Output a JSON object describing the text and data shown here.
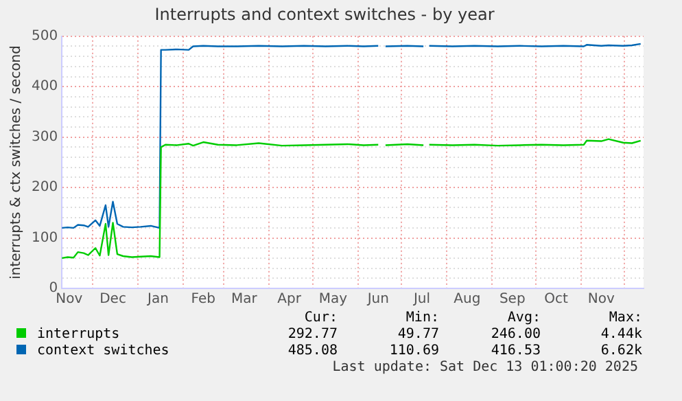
{
  "chart_data": {
    "type": "line",
    "title": "Interrupts and context switches - by year",
    "ylabel": "interrupts & ctx switches / second",
    "x": [
      "2024-11-10",
      "2024-11-14",
      "2024-11-18",
      "2024-11-21",
      "2024-11-25",
      "2024-11-28",
      "2024-12-03",
      "2024-12-06",
      "2024-12-10",
      "2024-12-12",
      "2024-12-15",
      "2024-12-18",
      "2024-12-22",
      "2024-12-28",
      "2025-01-03",
      "2025-01-10",
      "2025-01-16",
      "2025-01-17",
      "2025-01-20",
      "2025-01-28",
      "2025-02-05",
      "2025-02-08",
      "2025-02-15",
      "2025-02-25",
      "2025-03-10",
      "2025-03-25",
      "2025-04-10",
      "2025-04-25",
      "2025-05-10",
      "2025-05-25",
      "2025-06-05",
      "2025-06-15",
      "2025-06-18",
      "2025-06-20",
      "2025-07-05",
      "2025-07-16",
      "2025-07-18",
      "2025-07-20",
      "2025-08-05",
      "2025-08-20",
      "2025-09-05",
      "2025-09-20",
      "2025-10-05",
      "2025-10-20",
      "2025-11-03",
      "2025-11-05",
      "2025-11-15",
      "2025-11-20",
      "2025-11-30",
      "2025-12-06",
      "2025-12-12"
    ],
    "series": [
      {
        "name": "interrupts",
        "color": "#00cc00",
        "values": [
          60,
          62,
          61,
          72,
          70,
          66,
          80,
          65,
          128,
          66,
          130,
          68,
          64,
          62,
          63,
          64,
          62,
          280,
          285,
          284,
          287,
          283,
          290,
          285,
          284,
          288,
          283,
          284,
          285,
          286,
          284,
          285,
          null,
          284,
          286,
          284,
          null,
          285,
          284,
          285,
          283,
          284,
          285,
          284,
          285,
          293,
          292,
          296,
          289,
          288,
          293
        ]
      },
      {
        "name": "context switches",
        "color": "#0066b3",
        "values": [
          120,
          121,
          120,
          126,
          125,
          122,
          135,
          124,
          165,
          122,
          172,
          128,
          122,
          121,
          122,
          124,
          120,
          473,
          473,
          474,
          473,
          480,
          481,
          480,
          480,
          481,
          480,
          481,
          480,
          481,
          480,
          481,
          null,
          480,
          481,
          480,
          null,
          481,
          480,
          481,
          480,
          481,
          480,
          481,
          480,
          483,
          481,
          482,
          481,
          482,
          485
        ]
      }
    ],
    "xlim": [
      "2024-11-10",
      "2025-12-14"
    ],
    "xticks": [
      {
        "value": "2024-11-15",
        "label": "Nov"
      },
      {
        "value": "2024-12-01",
        "label": null
      },
      {
        "value": "2024-12-15",
        "label": "Dec"
      },
      {
        "value": "2025-01-01",
        "label": null
      },
      {
        "value": "2025-01-15",
        "label": "Jan"
      },
      {
        "value": "2025-02-01",
        "label": null
      },
      {
        "value": "2025-02-15",
        "label": "Feb"
      },
      {
        "value": "2025-03-01",
        "label": null
      },
      {
        "value": "2025-03-15",
        "label": "Mar"
      },
      {
        "value": "2025-04-01",
        "label": null
      },
      {
        "value": "2025-04-15",
        "label": "Apr"
      },
      {
        "value": "2025-05-01",
        "label": null
      },
      {
        "value": "2025-05-15",
        "label": "May"
      },
      {
        "value": "2025-06-01",
        "label": null
      },
      {
        "value": "2025-06-15",
        "label": "Jun"
      },
      {
        "value": "2025-07-01",
        "label": null
      },
      {
        "value": "2025-07-15",
        "label": "Jul"
      },
      {
        "value": "2025-08-01",
        "label": null
      },
      {
        "value": "2025-08-15",
        "label": "Aug"
      },
      {
        "value": "2025-09-01",
        "label": null
      },
      {
        "value": "2025-09-15",
        "label": "Sep"
      },
      {
        "value": "2025-10-01",
        "label": null
      },
      {
        "value": "2025-10-15",
        "label": "Oct"
      },
      {
        "value": "2025-11-01",
        "label": null
      },
      {
        "value": "2025-11-15",
        "label": "Nov"
      },
      {
        "value": "2025-12-01",
        "label": null
      }
    ],
    "ylim": [
      0,
      500
    ],
    "yticks": [
      0,
      {
        "value": 20,
        "label": null
      },
      {
        "value": 40,
        "label": null
      },
      {
        "value": 60,
        "label": null
      },
      {
        "value": 80,
        "label": null
      },
      100,
      {
        "value": 120,
        "label": null
      },
      {
        "value": 140,
        "label": null
      },
      {
        "value": 160,
        "label": null
      },
      {
        "value": 180,
        "label": null
      },
      200,
      {
        "value": 220,
        "label": null
      },
      {
        "value": 240,
        "label": null
      },
      {
        "value": 260,
        "label": null
      },
      {
        "value": 280,
        "label": null
      },
      300,
      {
        "value": 320,
        "label": null
      },
      {
        "value": 340,
        "label": null
      },
      {
        "value": 360,
        "label": null
      },
      {
        "value": 380,
        "label": null
      },
      400,
      {
        "value": 420,
        "label": null
      },
      {
        "value": 440,
        "label": null
      },
      {
        "value": 460,
        "label": null
      },
      {
        "value": 480,
        "label": null
      },
      500
    ],
    "grid": true,
    "legend": "bottom",
    "marker": "none",
    "line_style": "solid",
    "annotations": [
      "Cur:",
      "Min:",
      "Avg:",
      "Max:",
      "292.77",
      "49.77",
      "246.00",
      "4.44k",
      "485.08",
      "110.69",
      "416.53",
      "6.62k",
      "Last update:  Sat Dec 13 01:00:20 2025"
    ]
  }
}
